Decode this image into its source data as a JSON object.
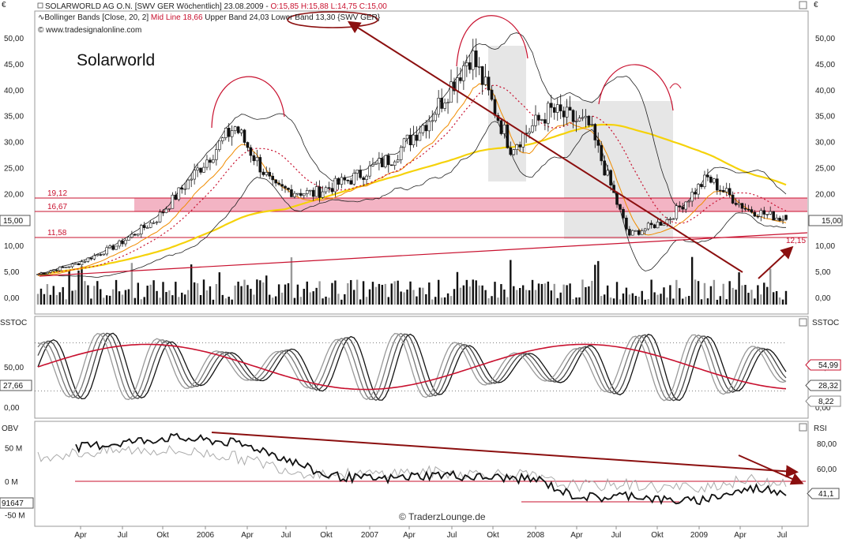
{
  "header": {
    "line1_prefix": "SOLARWORLD AG O.N. [SWV GER  Wöchentlich] 23.08.2009 - ",
    "line1_quote": "O:15,85 H:15,88 L:14,75 C:15,00",
    "line2_prefix": "Bollinger Bands [Close, 20, 2] ",
    "line2_mid": "Mid Line 18,66",
    "line2_suffix": " Upper Band 24,03 Lower Band 13,30 {SWV GER}",
    "copyright": "© www.tradesignalonline.com",
    "chart_title": "Solarworld",
    "watermark": "© TraderzLounge.de"
  },
  "panels": {
    "sstoc_label": "SSTOC",
    "obv_label": "OBV",
    "rsi_label": "RSI",
    "euro_symbol": "€"
  },
  "axes": {
    "price_ticks": [
      "50,00",
      "45,00",
      "40,00",
      "35,00",
      "30,00",
      "25,00",
      "20,00",
      "15,00",
      "10,00",
      "5,00",
      "0,00"
    ],
    "sstoc_ticks": [
      "50,00",
      "0,00"
    ],
    "obv_ticks": [
      "50 M",
      "0 M",
      "-50 M"
    ],
    "rsi_ticks": [
      "80,00",
      "60,00",
      "40,00"
    ],
    "time_ticks": [
      "Apr",
      "Jul",
      "Okt",
      "2006",
      "Apr",
      "Jul",
      "Okt",
      "2007",
      "Apr",
      "Jul",
      "Okt",
      "2008",
      "Apr",
      "Jul",
      "Okt",
      "2009",
      "Apr",
      "Jul"
    ]
  },
  "levels": {
    "l1": "19,12",
    "l2": "16,67",
    "l3": "11,58",
    "l4": "12,15"
  },
  "badges": {
    "price_right": "15,00",
    "price_left": "15,00",
    "sstoc_left": "27,66",
    "sstoc_r1": "54,99",
    "sstoc_r2": "28,32",
    "sstoc_r3": "8,22",
    "obv_left": "91647",
    "rsi_right": "41,1"
  },
  "colors": {
    "red": "#c8102e",
    "dark_red": "#8b0f0f",
    "zone_pink": "#f3b4c4",
    "sma_yellow": "#f5d20a",
    "bb_orange": "#f08c00",
    "grey_band": "#e6e6e6"
  },
  "chart_data": [
    {
      "type": "candlestick",
      "title": "Solarworld",
      "series": [
        {
          "name": "Bollinger Bands [Close, 20, 2]",
          "mid": 18.66,
          "upper": 24.03,
          "lower": 13.3
        },
        {
          "name": "Close",
          "x": [
            "2005-01",
            "2005-04",
            "2005-07",
            "2005-10",
            "2006-01",
            "2006-04",
            "2006-07",
            "2006-10",
            "2007-01",
            "2007-04",
            "2007-07",
            "2007-10",
            "2008-01",
            "2008-04",
            "2008-07",
            "2008-10",
            "2009-01",
            "2009-04",
            "2009-07",
            "2009-08"
          ],
          "values": [
            4.5,
            6.5,
            10,
            15,
            24,
            33,
            21,
            20,
            23,
            27,
            35,
            47,
            29,
            36,
            33,
            12,
            15,
            23,
            17,
            15
          ]
        }
      ],
      "last_bar": {
        "date": "23.08.2009",
        "open": 15.85,
        "high": 15.88,
        "low": 14.75,
        "close": 15.0
      },
      "horizontal_levels": [
        19.12,
        16.67,
        11.58
      ],
      "trendline_end_value": 12.15,
      "ylim": [
        0,
        52
      ]
    },
    {
      "type": "line",
      "title": "SSTOC",
      "right_values": [
        54.99,
        28.32,
        8.22
      ],
      "left_value": 27.66,
      "ylim": [
        0,
        100
      ]
    },
    {
      "type": "line",
      "title": "OBV / RSI",
      "obv_last": 91647,
      "rsi_last": 41.1,
      "obv_ylim_M": [
        -60,
        90
      ],
      "rsi_ylim": [
        30,
        90
      ]
    }
  ]
}
